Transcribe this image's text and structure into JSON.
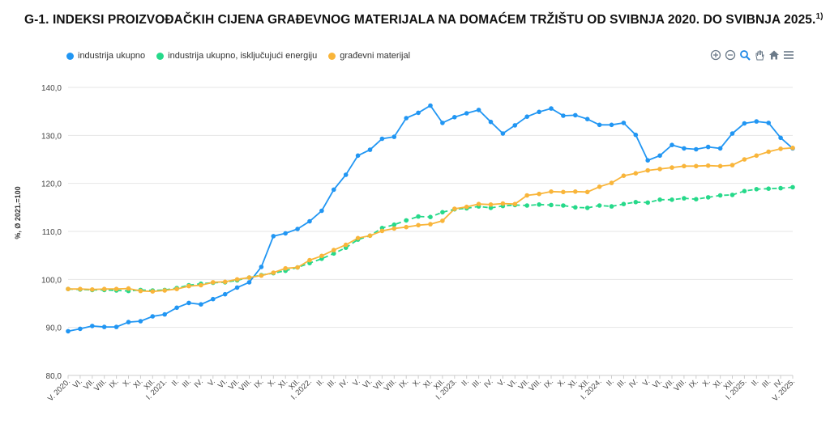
{
  "title": "G-1. INDEKSI PROIZVOĐAČKIH CIJENA GRAĐEVNOG MATERIJALA NA DOMAĆEM TRŽIŠTU OD SVIBNJA 2020. DO SVIBNJA 2025.",
  "title_note": "1)",
  "toolbar": {
    "icons": [
      "zoom-in-icon",
      "zoom-out-icon",
      "magnifier-icon",
      "pan-hand-icon",
      "home-icon",
      "menu-icon"
    ]
  },
  "chart_data": {
    "type": "line",
    "title": "G-1. INDEKSI PROIZVOĐAČKIH CIJENA GRAĐEVNOG MATERIJALA NA DOMAĆEM TRŽIŠTU OD SVIBNJA 2020. DO SVIBNJA 2025.",
    "ylabel": "%, Ø 2021.=100",
    "xlabel": "",
    "ylim": [
      80,
      140
    ],
    "yticks": [
      "80,0",
      "90,0",
      "100,0",
      "110,0",
      "120,0",
      "130,0",
      "140,0"
    ],
    "grid": true,
    "legend_position": "top-left",
    "categories": [
      "V. 2020.",
      "VI.",
      "VII.",
      "VIII.",
      "IX.",
      "X.",
      "XI.",
      "XII.",
      "I. 2021.",
      "II.",
      "III.",
      "IV.",
      "V.",
      "VI.",
      "VII.",
      "VIII.",
      "IX.",
      "X.",
      "XI.",
      "XII.",
      "I. 2022.",
      "II.",
      "III.",
      "IV.",
      "V.",
      "VI.",
      "VII.",
      "VIII.",
      "IX.",
      "X.",
      "XI.",
      "XII.",
      "I. 2023.",
      "II.",
      "III.",
      "IV.",
      "V.",
      "VI.",
      "VII.",
      "VIII.",
      "IX.",
      "X.",
      "XI.",
      "XII.",
      "I. 2024.",
      "II.",
      "III.",
      "IV.",
      "V.",
      "VI.",
      "VII.",
      "VIII.",
      "IX.",
      "X.",
      "XI.",
      "XII.",
      "I. 2025.",
      "II.",
      "III.",
      "IV.",
      "V. 2025."
    ],
    "series": [
      {
        "name": "industrija ukupno",
        "color": "#2196f3",
        "dash": false,
        "values": [
          89.2,
          89.7,
          90.3,
          90.1,
          90.1,
          91.1,
          91.3,
          92.3,
          92.7,
          94.1,
          95.1,
          94.8,
          95.9,
          96.9,
          98.3,
          99.4,
          102.6,
          109.0,
          109.6,
          110.5,
          112.1,
          114.3,
          118.7,
          121.8,
          125.8,
          127.0,
          129.3,
          129.7,
          133.6,
          134.7,
          136.2,
          132.6,
          133.8,
          134.6,
          135.3,
          132.8,
          130.4,
          132.1,
          133.9,
          134.9,
          135.6,
          134.1,
          134.2,
          133.4,
          132.2,
          132.2,
          132.6,
          130.1,
          124.8,
          125.8,
          128.0,
          127.3,
          127.1,
          127.6,
          127.3,
          130.4,
          132.5,
          132.9,
          132.6,
          129.5,
          127.3
        ]
      },
      {
        "name": "industrija ukupno, isključujući energiju",
        "color": "#26d98a",
        "dash": true,
        "values": [
          98.0,
          97.9,
          97.8,
          97.8,
          97.7,
          97.6,
          97.8,
          97.7,
          97.8,
          98.2,
          98.8,
          99.1,
          99.3,
          99.4,
          99.8,
          100.4,
          100.9,
          101.3,
          101.8,
          102.5,
          103.4,
          104.3,
          105.4,
          106.6,
          108.3,
          109.1,
          110.7,
          111.4,
          112.3,
          113.1,
          113.0,
          114.0,
          114.6,
          114.8,
          115.2,
          114.9,
          115.3,
          115.5,
          115.4,
          115.6,
          115.5,
          115.4,
          115.0,
          114.9,
          115.4,
          115.2,
          115.7,
          116.1,
          116.0,
          116.6,
          116.6,
          116.9,
          116.7,
          117.1,
          117.5,
          117.6,
          118.4,
          118.8,
          118.9,
          119.0,
          119.2
        ]
      },
      {
        "name": "građevni materijal",
        "color": "#f9b53a",
        "dash": false,
        "values": [
          98.0,
          98.0,
          97.9,
          98.0,
          98.0,
          98.1,
          97.6,
          97.5,
          97.7,
          98.0,
          98.6,
          98.8,
          99.4,
          99.5,
          100.0,
          100.4,
          100.8,
          101.4,
          102.3,
          102.5,
          104.0,
          104.9,
          106.1,
          107.2,
          108.6,
          109.1,
          110.1,
          110.6,
          110.9,
          111.3,
          111.5,
          112.2,
          114.7,
          115.1,
          115.7,
          115.6,
          115.8,
          115.7,
          117.5,
          117.8,
          118.3,
          118.2,
          118.3,
          118.2,
          119.3,
          120.1,
          121.6,
          122.1,
          122.7,
          123.0,
          123.3,
          123.6,
          123.6,
          123.7,
          123.6,
          123.8,
          125.0,
          125.8,
          126.6,
          127.2,
          127.4
        ]
      }
    ]
  }
}
